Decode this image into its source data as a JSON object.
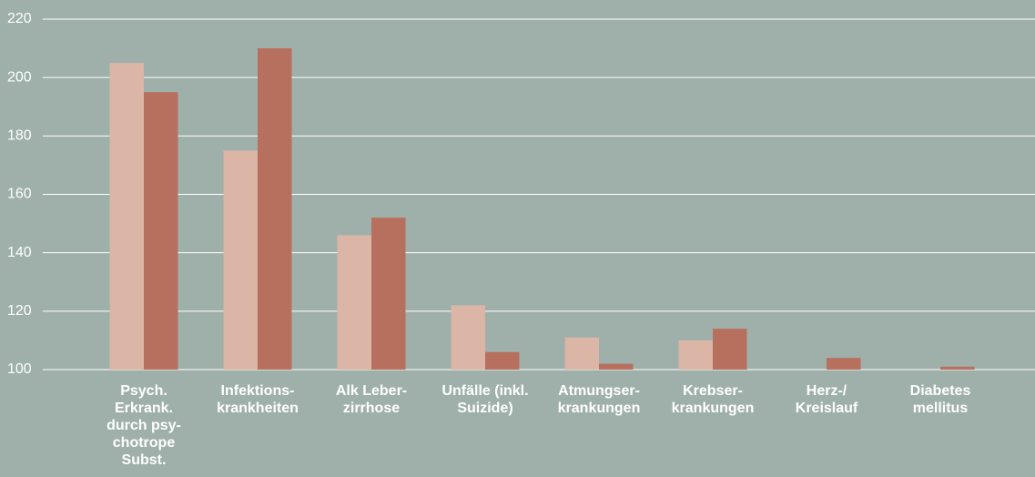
{
  "chart_data": {
    "type": "bar",
    "categories": [
      "Psych.\nErkrank.\ndurch psy-\nchotrope\nSubst.",
      "Infektions-\nkrankheiten",
      "Alk Leber-\nzirrhose",
      "Unfälle (inkl.\nSuizide)",
      "Atmungser-\nkrankungen",
      "Krebser-\nkrankungen",
      "Herz-/\nKreislauf",
      "Diabetes\nmellitus"
    ],
    "series": [
      {
        "color": "#dbb5a5",
        "values": [
          205,
          175,
          146,
          122,
          111,
          110,
          null,
          null
        ]
      },
      {
        "color": "#b8705e",
        "values": [
          195,
          210,
          152,
          106,
          102,
          114,
          104,
          101
        ]
      }
    ],
    "ylim": [
      100,
      220
    ],
    "yticks": [
      100,
      120,
      140,
      160,
      180,
      200,
      220
    ],
    "grid": true
  }
}
